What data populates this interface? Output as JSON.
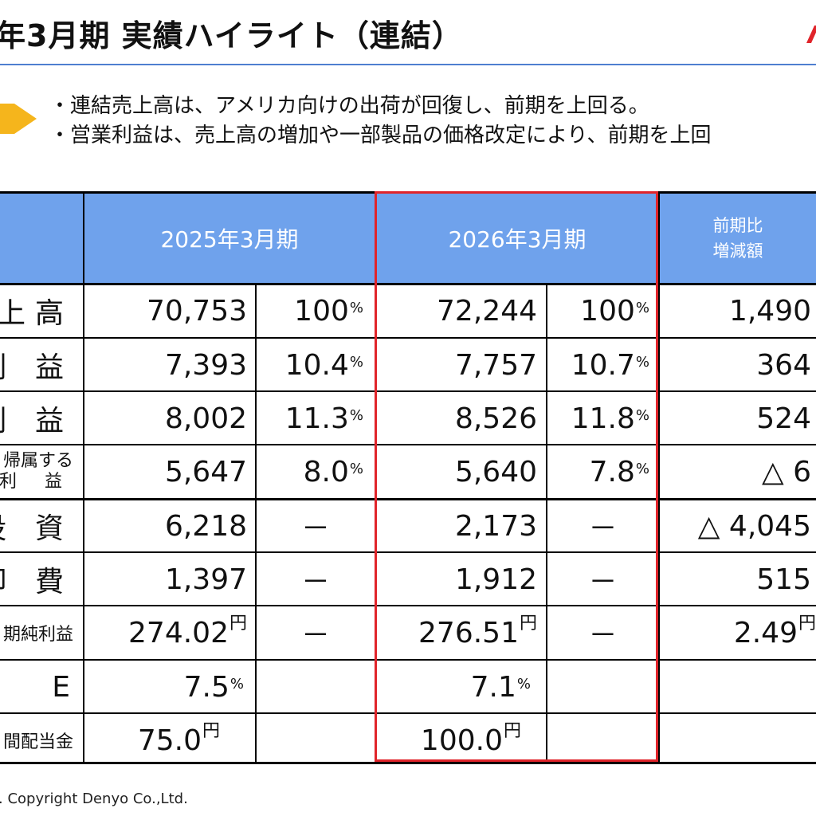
{
  "title": "年3月期 実績ハイライト（連結）",
  "bullets": [
    "・連結売上高は、アメリカ向けの出荷が回復し、前期を上回る。",
    "・営業利益は、売上高の増加や一部製品の価格改定により、前期を上回"
  ],
  "table": {
    "headers": {
      "fy2025": "2025年3月期",
      "fy2026": "2026年3月期",
      "diff_line1": "前期比",
      "diff_line2": "増減額"
    },
    "rows": [
      {
        "label": "上高",
        "v25": "70,753",
        "p25": "100",
        "v26": "72,244",
        "p26": "100",
        "diff": "1,490"
      },
      {
        "label": "利 益",
        "v25": "7,393",
        "p25": "10.4",
        "v26": "7,757",
        "p26": "10.7",
        "diff": "364"
      },
      {
        "label": "利 益",
        "v25": "8,002",
        "p25": "11.3",
        "v26": "8,526",
        "p26": "11.8",
        "diff": "524"
      },
      {
        "label1": "帰属する",
        "label2": "利 益",
        "v25": "5,647",
        "p25": "8.0",
        "v26": "5,640",
        "p26": "7.8",
        "diff": "△ 6"
      },
      {
        "label": "投 資",
        "v25": "6,218",
        "p25": "－",
        "v26": "2,173",
        "p26": "－",
        "diff": "△ 4,045"
      },
      {
        "label": "却 費",
        "v25": "1,397",
        "p25": "－",
        "v26": "1,912",
        "p26": "－",
        "diff": "515"
      },
      {
        "label": "期純利益",
        "v25": "274.02",
        "p25": "－",
        "v26": "276.51",
        "p26": "－",
        "diff": "2.49"
      },
      {
        "label": "E",
        "v25": "7.5",
        "v26": "7.1"
      },
      {
        "label": "間配当金",
        "v25": "75.0",
        "v26": "100.0"
      }
    ],
    "units": {
      "percent": "%",
      "yen": "円"
    }
  },
  "footer": ". Copyright Denyo Co.,Ltd.",
  "colors": {
    "header_bg": "#6fa2ec",
    "highlight_border": "#e0242a",
    "rule": "#4f7fd0",
    "arrow": "#f5b51c"
  }
}
